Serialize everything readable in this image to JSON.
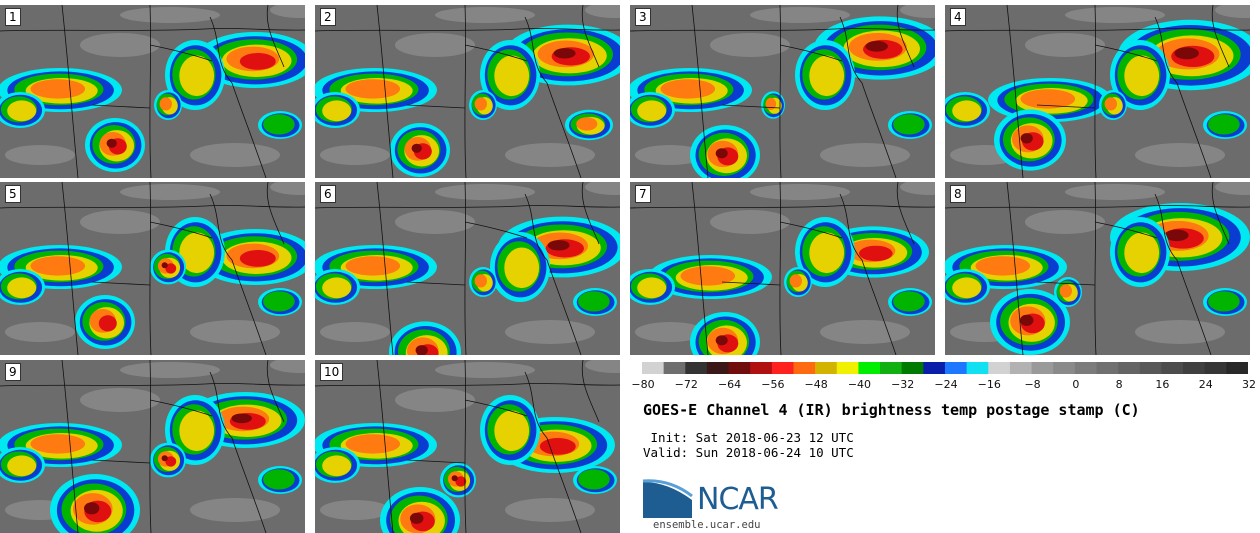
{
  "panels": [
    {
      "label": "1"
    },
    {
      "label": "2"
    },
    {
      "label": "3"
    },
    {
      "label": "4"
    },
    {
      "label": "5"
    },
    {
      "label": "6"
    },
    {
      "label": "7"
    },
    {
      "label": "8"
    },
    {
      "label": "9"
    },
    {
      "label": "10"
    }
  ],
  "colorbar": {
    "colors": [
      "#d2d2d2",
      "#6e6e6e",
      "#333333",
      "#3a1818",
      "#700e0e",
      "#b01010",
      "#ff2020",
      "#ff6a10",
      "#d2b400",
      "#f0f000",
      "#00ee00",
      "#10b010",
      "#007a00",
      "#0a1eaa",
      "#1e78ff",
      "#10e0f0",
      "#d2d2d2",
      "#b2b2b2",
      "#9a9a9a",
      "#8a8a8a",
      "#7c7c7c",
      "#707070",
      "#646464",
      "#585858",
      "#4c4c4c",
      "#404040",
      "#363636",
      "#282828"
    ],
    "ticks": [
      "−80",
      "−72",
      "−64",
      "−56",
      "−48",
      "−40",
      "−32",
      "−24",
      "−16",
      "−8",
      "0",
      "8",
      "16",
      "24",
      "32"
    ]
  },
  "title": "GOES-E Channel 4 (IR) brightness temp postage stamp (C)",
  "init_line": " Init: Sat 2018-06-23 12 UTC",
  "valid_line": "Valid: Sun 2018-06-24 10 UTC",
  "logo": {
    "name": "NCAR",
    "url": "ensemble.ucar.edu",
    "color": "#1d5d92"
  }
}
